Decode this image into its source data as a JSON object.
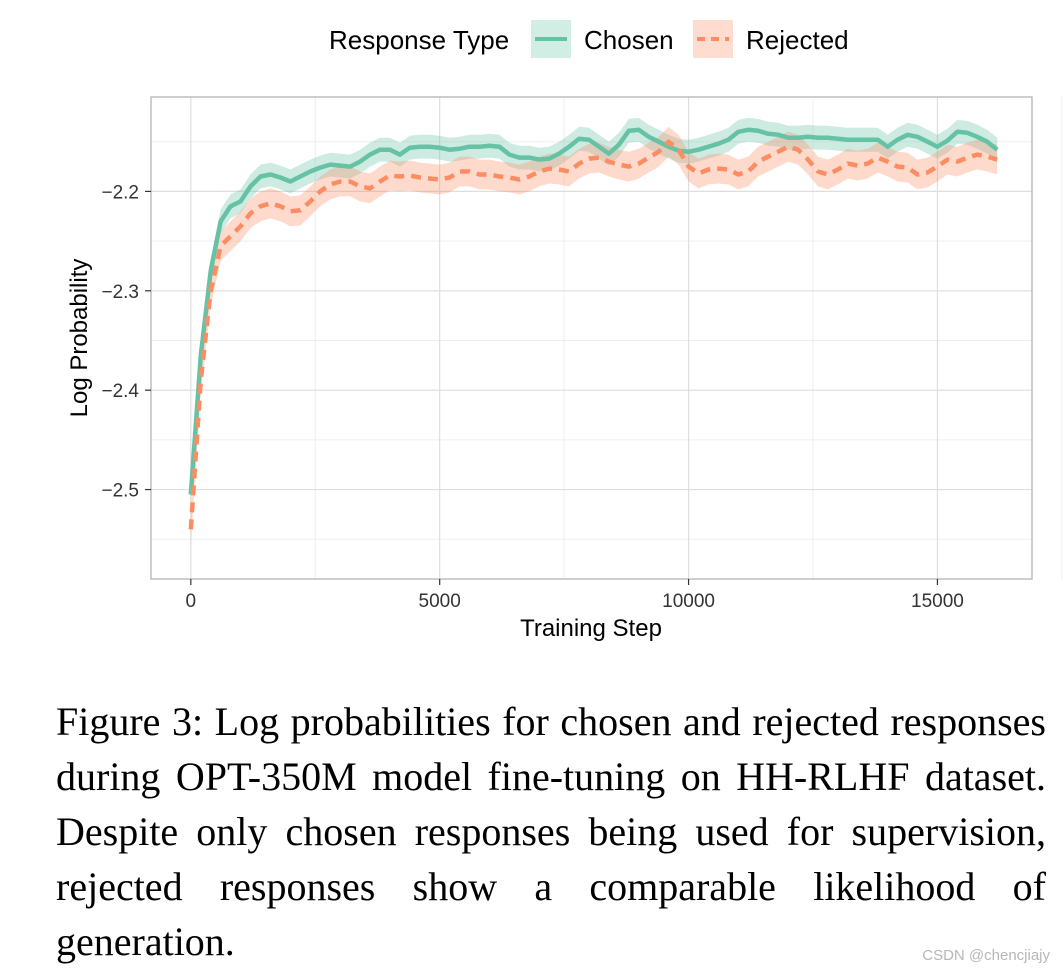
{
  "chart_data": {
    "type": "line",
    "title": "",
    "xlabel": "Training Step",
    "ylabel": "Log Probability",
    "xlim": [
      -800,
      16900
    ],
    "ylim": [
      -2.59,
      -2.105
    ],
    "xticks": [
      0,
      5000,
      10000,
      15000
    ],
    "xtick_labels": [
      "0",
      "5000",
      "10000",
      "15000"
    ],
    "yticks": [
      -2.2,
      -2.3,
      -2.4,
      -2.5
    ],
    "ytick_labels": [
      "−2.2",
      "−2.3",
      "−2.4",
      "−2.5"
    ],
    "legend": {
      "title": "Response Type",
      "position": "top",
      "entries": [
        "Chosen",
        "Rejected"
      ]
    },
    "x": [
      0,
      200,
      400,
      600,
      800,
      1000,
      1200,
      1400,
      1600,
      1800,
      2000,
      2200,
      2400,
      2600,
      2800,
      3000,
      3200,
      3400,
      3600,
      3800,
      4000,
      4200,
      4400,
      4600,
      4800,
      5000,
      5200,
      5400,
      5600,
      5800,
      6000,
      6200,
      6400,
      6600,
      6800,
      7000,
      7200,
      7400,
      7600,
      7800,
      8000,
      8200,
      8400,
      8600,
      8800,
      9000,
      9200,
      9400,
      9600,
      9800,
      10000,
      10200,
      10400,
      10600,
      10800,
      11000,
      11200,
      11400,
      11600,
      11800,
      12000,
      12200,
      12400,
      12600,
      12800,
      13000,
      13200,
      13400,
      13600,
      13800,
      14000,
      14200,
      14400,
      14600,
      14800,
      15000,
      15200,
      15400,
      15600,
      15800,
      16000,
      16200
    ],
    "series": [
      {
        "name": "Chosen",
        "color": "#66c2a5",
        "band": 0.012,
        "style": "solid",
        "values": [
          -2.505,
          -2.365,
          -2.28,
          -2.23,
          -2.215,
          -2.21,
          -2.195,
          -2.185,
          -2.183,
          -2.186,
          -2.19,
          -2.185,
          -2.18,
          -2.176,
          -2.173,
          -2.174,
          -2.175,
          -2.17,
          -2.163,
          -2.158,
          -2.158,
          -2.163,
          -2.156,
          -2.155,
          -2.155,
          -2.156,
          -2.158,
          -2.157,
          -2.155,
          -2.155,
          -2.154,
          -2.155,
          -2.163,
          -2.166,
          -2.166,
          -2.168,
          -2.167,
          -2.162,
          -2.155,
          -2.147,
          -2.148,
          -2.155,
          -2.162,
          -2.153,
          -2.139,
          -2.138,
          -2.145,
          -2.15,
          -2.155,
          -2.159,
          -2.16,
          -2.158,
          -2.155,
          -2.152,
          -2.148,
          -2.14,
          -2.138,
          -2.139,
          -2.142,
          -2.143,
          -2.146,
          -2.146,
          -2.145,
          -2.146,
          -2.146,
          -2.147,
          -2.148,
          -2.148,
          -2.148,
          -2.148,
          -2.155,
          -2.148,
          -2.143,
          -2.145,
          -2.15,
          -2.155,
          -2.149,
          -2.14,
          -2.141,
          -2.145,
          -2.15,
          -2.158
        ]
      },
      {
        "name": "Rejected",
        "color": "#fc8d62",
        "band": 0.015,
        "style": "dashed",
        "values": [
          -2.54,
          -2.39,
          -2.3,
          -2.255,
          -2.245,
          -2.235,
          -2.222,
          -2.215,
          -2.212,
          -2.215,
          -2.22,
          -2.219,
          -2.21,
          -2.2,
          -2.193,
          -2.19,
          -2.19,
          -2.195,
          -2.197,
          -2.19,
          -2.184,
          -2.185,
          -2.184,
          -2.186,
          -2.187,
          -2.188,
          -2.186,
          -2.18,
          -2.18,
          -2.183,
          -2.183,
          -2.185,
          -2.186,
          -2.188,
          -2.185,
          -2.18,
          -2.177,
          -2.178,
          -2.18,
          -2.172,
          -2.167,
          -2.166,
          -2.17,
          -2.173,
          -2.175,
          -2.172,
          -2.166,
          -2.16,
          -2.15,
          -2.158,
          -2.175,
          -2.182,
          -2.178,
          -2.177,
          -2.178,
          -2.183,
          -2.18,
          -2.17,
          -2.165,
          -2.16,
          -2.155,
          -2.158,
          -2.168,
          -2.18,
          -2.183,
          -2.178,
          -2.172,
          -2.174,
          -2.172,
          -2.166,
          -2.17,
          -2.175,
          -2.176,
          -2.183,
          -2.181,
          -2.175,
          -2.168,
          -2.17,
          -2.166,
          -2.163,
          -2.165,
          -2.168
        ]
      }
    ]
  },
  "caption": "Figure 3:  Log probabilities for chosen and rejected responses during OPT-350M model fine-tuning on HH-RLHF dataset.  Despite only chosen responses being used for supervision, rejected responses show a comparable likelihood of generation.",
  "watermark": "CSDN @chencjiajy"
}
